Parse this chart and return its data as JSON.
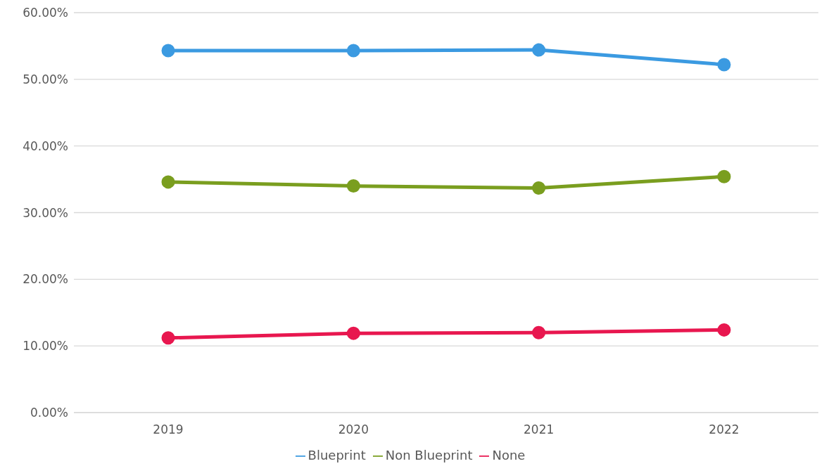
{
  "chart_data": {
    "type": "line",
    "categories": [
      "2019",
      "2020",
      "2021",
      "2022"
    ],
    "series": [
      {
        "name": "Blueprint",
        "color": "#3b9ae1",
        "values": [
          54.3,
          54.3,
          54.4,
          52.2
        ]
      },
      {
        "name": "Non Blueprint",
        "color": "#7a9e1f",
        "values": [
          34.6,
          34.0,
          33.7,
          35.4
        ]
      },
      {
        "name": "None",
        "color": "#e8174f",
        "values": [
          11.2,
          11.9,
          12.0,
          12.4
        ]
      }
    ],
    "ylim": [
      0,
      60
    ],
    "yticks": [
      {
        "value": 0,
        "label": "0.00%"
      },
      {
        "value": 10,
        "label": "10.00%"
      },
      {
        "value": 20,
        "label": "20.00%"
      },
      {
        "value": 30,
        "label": "30.00%"
      },
      {
        "value": 40,
        "label": "40.00%"
      },
      {
        "value": 50,
        "label": "50.00%"
      },
      {
        "value": 60,
        "label": "60.00%"
      }
    ],
    "grid": "y",
    "legend": "bottom",
    "marker": "circle",
    "line_style": "solid"
  }
}
